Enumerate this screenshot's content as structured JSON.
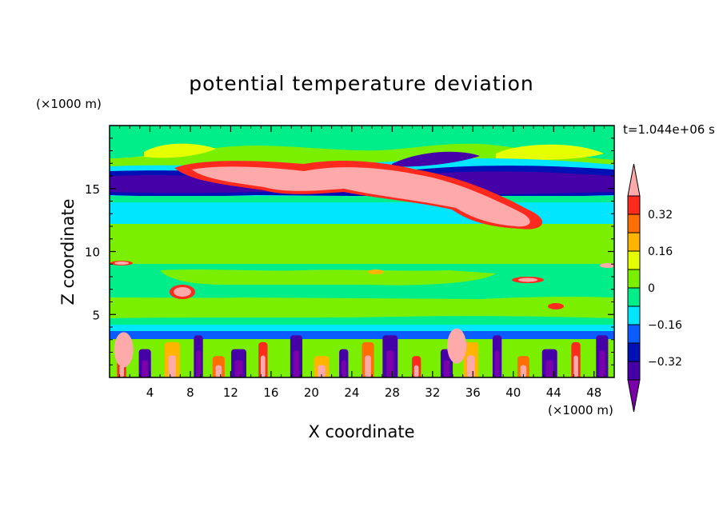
{
  "chart_data": {
    "type": "heatmap",
    "title": "potential temperature deviation",
    "xlabel": "X coordinate",
    "ylabel": "Z coordinate",
    "x_unit": "(×1000 m)",
    "y_unit": "(×1000 m)",
    "time_label": "t=1.044e+06 s",
    "xlim": [
      0,
      50
    ],
    "ylim": [
      0,
      20
    ],
    "xticks": [
      4,
      8,
      12,
      16,
      20,
      24,
      28,
      32,
      36,
      40,
      44,
      48
    ],
    "yticks": [
      5,
      10,
      15
    ],
    "colorbar": {
      "levels": [
        -0.48,
        -0.4,
        -0.32,
        -0.24,
        -0.16,
        -0.08,
        0,
        0.08,
        0.16,
        0.24,
        0.32,
        0.4
      ],
      "labels": [
        "0.32",
        "0.16",
        "0",
        "−0.16",
        "−0.32"
      ],
      "label_values": [
        0.32,
        0.16,
        0,
        -0.16,
        -0.32
      ],
      "colors": [
        "#7a00aa",
        "#4600a8",
        "#0010b4",
        "#0a5cff",
        "#00e6ff",
        "#00ee8a",
        "#7af000",
        "#e6ff00",
        "#ffb400",
        "#ff6e00",
        "#ff2a1e",
        "#ffaaaa"
      ]
    },
    "layers": [
      {
        "z": [
          0,
          3.5
        ],
        "description": "alternating warm/cold columns near surface",
        "range": [
          -0.48,
          0.48
        ]
      },
      {
        "z": [
          3.5,
          12
        ],
        "value": 0.04
      },
      {
        "z": [
          12,
          14
        ],
        "value": -0.12
      },
      {
        "z": [
          14,
          16.5
        ],
        "value": -0.44
      },
      {
        "z": [
          13,
          17
        ],
        "value": 0.44
      },
      {
        "z": [
          16.5,
          20
        ],
        "value": 0.04
      }
    ]
  }
}
